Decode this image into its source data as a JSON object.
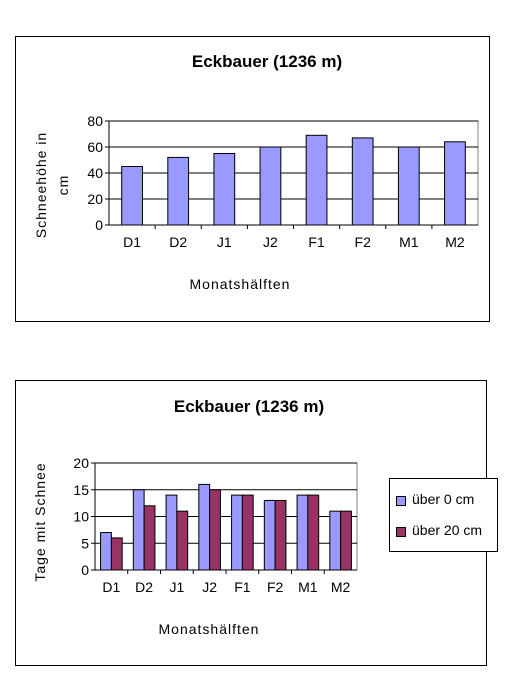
{
  "chart_data": [
    {
      "type": "bar",
      "title": "Eckbauer (1236 m)",
      "xlabel": "Monatshälften",
      "ylabel_lines": [
        "Schneehöhe in",
        "cm"
      ],
      "categories": [
        "D1",
        "D2",
        "J1",
        "J2",
        "F1",
        "F2",
        "M1",
        "M2"
      ],
      "series": [
        {
          "values": [
            45,
            52,
            55,
            60,
            69,
            67,
            60,
            64
          ],
          "color": "#9999ff"
        }
      ],
      "ylim": [
        0,
        80
      ],
      "yticks": [
        "0",
        "20",
        "40",
        "60",
        "80"
      ],
      "grid": true,
      "plot_bg": "#ffffff"
    },
    {
      "type": "bar",
      "title": "Eckbauer (1236 m)",
      "xlabel": "Monatshälften",
      "ylabel_lines": [
        "Tage mit Schnee"
      ],
      "categories": [
        "D1",
        "D2",
        "J1",
        "J2",
        "F1",
        "F2",
        "M1",
        "M2"
      ],
      "series": [
        {
          "name": "über 0 cm",
          "values": [
            7,
            15,
            14,
            16,
            14,
            13,
            14,
            11
          ],
          "color": "#9999ff"
        },
        {
          "name": "über 20 cm",
          "values": [
            6,
            12,
            11,
            15,
            14,
            13,
            14,
            11
          ],
          "color": "#993366"
        }
      ],
      "ylim": [
        0,
        20
      ],
      "yticks": [
        "0",
        "5",
        "10",
        "15",
        "20"
      ],
      "grid": true,
      "legend": "right",
      "plot_bg": "#ffffff"
    }
  ]
}
